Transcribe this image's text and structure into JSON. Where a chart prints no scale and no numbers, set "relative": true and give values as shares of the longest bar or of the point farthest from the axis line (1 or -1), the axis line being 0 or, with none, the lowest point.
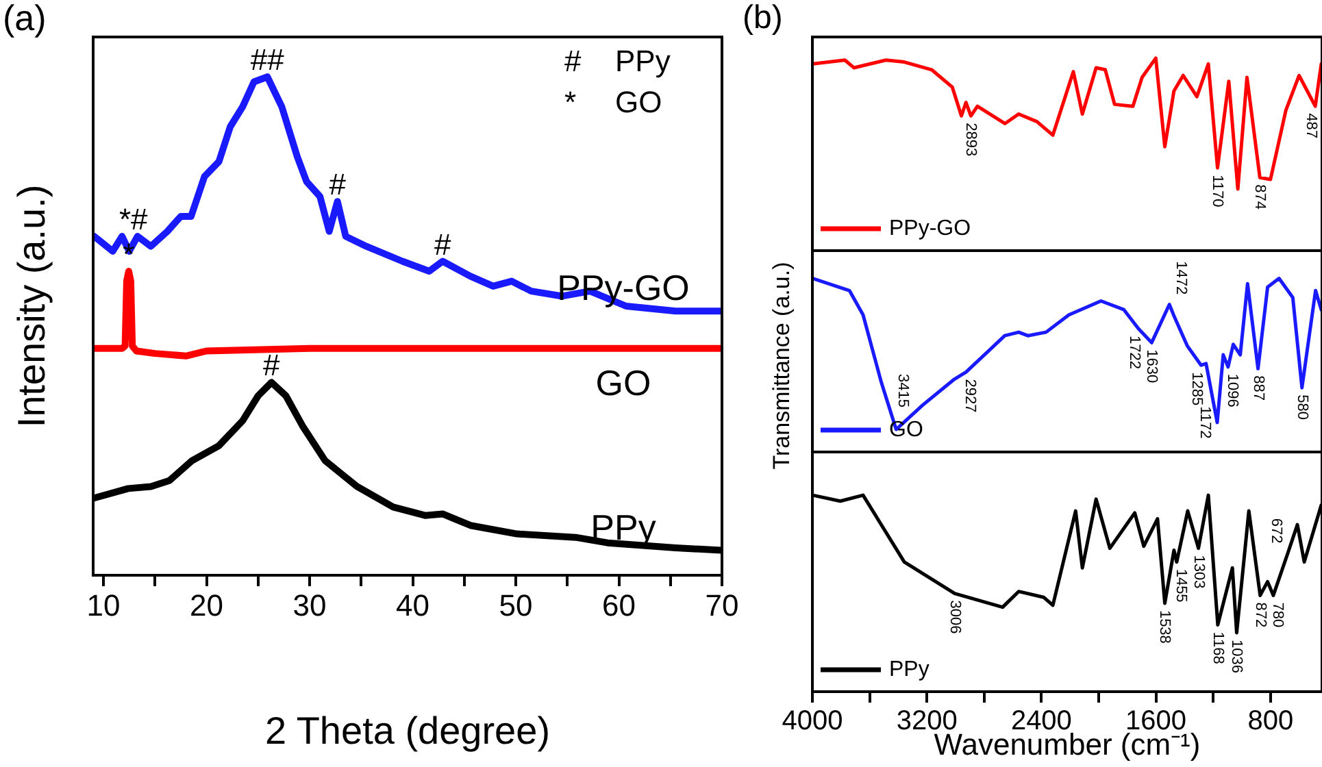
{
  "chart_data": [
    {
      "type": "line",
      "title": "(a)",
      "xlabel": "2 Theta (degree)",
      "ylabel": "Intensity (a.u.)",
      "relative": true,
      "xlim": [
        9,
        70
      ],
      "xticks": [
        10,
        {
          "value": 15,
          "label": null
        },
        20,
        {
          "value": 25,
          "label": null
        },
        30,
        {
          "value": 35,
          "label": null
        },
        40,
        {
          "value": 45,
          "label": null
        },
        50,
        {
          "value": 55,
          "label": null
        },
        60,
        {
          "value": 65,
          "label": null
        },
        70
      ],
      "series": [
        {
          "name": "PPy-GO",
          "color": "#1a1aff",
          "x": [
            9.1,
            10.9,
            11.8,
            12.5,
            13.3,
            14.6,
            16.2,
            17.5,
            18.5,
            19.8,
            21.2,
            22.3,
            23.5,
            24.6,
            25.9,
            27.3,
            28.8,
            29.7,
            31.0,
            31.9,
            32.7,
            33.5,
            35.5,
            39.0,
            41.6,
            42.9,
            45.6,
            47.8,
            49.6,
            51.5,
            54.5,
            57.2,
            60.7,
            65.5,
            69.9
          ],
          "values": [
            0.68,
            0.65,
            0.68,
            0.65,
            0.68,
            0.66,
            0.69,
            0.72,
            0.72,
            0.8,
            0.83,
            0.9,
            0.94,
            0.99,
            1.0,
            0.94,
            0.84,
            0.79,
            0.76,
            0.69,
            0.75,
            0.68,
            0.66,
            0.63,
            0.61,
            0.63,
            0.6,
            0.58,
            0.59,
            0.57,
            0.56,
            0.57,
            0.54,
            0.53,
            0.53
          ]
        },
        {
          "name": "GO",
          "color": "#ff0000",
          "x": [
            9.1,
            11.8,
            12.1,
            12.25,
            12.45,
            12.65,
            12.8,
            13.2,
            15,
            18,
            20,
            30,
            70
          ],
          "values": [
            0.455,
            0.455,
            0.46,
            0.59,
            0.61,
            0.59,
            0.46,
            0.45,
            0.445,
            0.44,
            0.45,
            0.455,
            0.455
          ]
        },
        {
          "name": "PPy",
          "color": "#000000",
          "x": [
            9.1,
            12.4,
            14.6,
            16.4,
            18.6,
            21.2,
            23.5,
            25,
            26.3,
            27.7,
            29.3,
            31.5,
            34.6,
            38.1,
            41.2,
            42.9,
            45.6,
            50.1,
            55.8,
            58.9,
            65.5,
            69.9
          ],
          "values": [
            0.155,
            0.174,
            0.178,
            0.19,
            0.23,
            0.26,
            0.31,
            0.36,
            0.387,
            0.36,
            0.3,
            0.23,
            0.178,
            0.137,
            0.12,
            0.123,
            0.1,
            0.083,
            0.076,
            0.065,
            0.055,
            0.05
          ]
        }
      ],
      "annotations": [
        {
          "text": "##",
          "x": 25.9,
          "y": 1.0
        },
        {
          "text": "*#",
          "x": 12.9,
          "y": 0.68
        },
        {
          "text": "*",
          "x": 12.45,
          "y": 0.61
        },
        {
          "text": "#",
          "x": 32.7,
          "y": 0.75
        },
        {
          "text": "#",
          "x": 42.9,
          "y": 0.63
        },
        {
          "text": "#",
          "x": 26.3,
          "y": 0.387
        },
        "# PPy",
        "* GO"
      ]
    },
    {
      "type": "line",
      "title": "(b)",
      "relative": true,
      "xlim": [
        4000,
        440
      ],
      "tick_labels": false,
      "legend": "bottom left",
      "series": [
        {
          "name": "PPy-GO",
          "color": "#ff0000",
          "x": [
            3997,
            3773,
            3710,
            3486,
            3358,
            3167,
            3023,
            2959,
            2927,
            2893,
            2847,
            2655,
            2559,
            2431,
            2320,
            2177,
            2114,
            2018,
            1954,
            1889,
            1761,
            1697,
            1601,
            1538,
            1474,
            1410,
            1314,
            1234,
            1170,
            1091,
            1028,
            964,
            874,
            800,
            692,
            600,
            487,
            445
          ],
          "values": [
            0.97,
            0.99,
            0.95,
            0.99,
            0.98,
            0.94,
            0.85,
            0.7,
            0.77,
            0.7,
            0.75,
            0.66,
            0.71,
            0.67,
            0.6,
            0.93,
            0.71,
            0.95,
            0.94,
            0.76,
            0.75,
            0.9,
            1.0,
            0.54,
            0.83,
            0.91,
            0.8,
            0.97,
            0.43,
            0.88,
            0.32,
            0.9,
            0.38,
            0.37,
            0.73,
            0.91,
            0.75,
            0.97
          ]
        }
      ],
      "annotations": [
        {
          "text": "2893",
          "x": 2893,
          "y": 0.7
        },
        {
          "text": "1170",
          "x": 1170,
          "y": 0.43
        },
        {
          "text": "874",
          "x": 874,
          "y": 0.38
        },
        {
          "text": "487",
          "x": 487,
          "y": 0.75
        }
      ]
    },
    {
      "type": "line",
      "ylabel": "Transmittance (a.u.)",
      "relative": true,
      "xlim": [
        4000,
        440
      ],
      "tick_labels": false,
      "legend": "bottom left",
      "series": [
        {
          "name": "GO",
          "color": "#1a1aff",
          "x": [
            3997,
            3741,
            3646,
            3518,
            3415,
            3230,
            3007,
            2927,
            2656,
            2559,
            2495,
            2368,
            2208,
            1984,
            1824,
            1722,
            1630,
            1506,
            1472,
            1380,
            1285,
            1250,
            1172,
            1130,
            1096,
            1060,
            1011,
            960,
            887,
            820,
            740,
            644,
            580,
            485,
            445
          ],
          "values": [
            1.0,
            0.93,
            0.79,
            0.4,
            0.13,
            0.27,
            0.42,
            0.46,
            0.67,
            0.69,
            0.67,
            0.69,
            0.79,
            0.87,
            0.82,
            0.71,
            0.63,
            0.85,
            0.78,
            0.61,
            0.5,
            0.51,
            0.17,
            0.56,
            0.49,
            0.62,
            0.56,
            0.97,
            0.48,
            0.95,
            1.0,
            0.89,
            0.37,
            0.93,
            0.82
          ]
        }
      ],
      "annotations": [
        {
          "text": "3415",
          "x": 3415,
          "y": 0.13
        },
        {
          "text": "2927",
          "x": 2927,
          "y": 0.46
        },
        {
          "text": "1722",
          "x": 1722,
          "y": 0.71
        },
        {
          "text": "1630",
          "x": 1630,
          "y": 0.63
        },
        {
          "text": "1472",
          "x": 1472,
          "y": 0.78
        },
        {
          "text": "1285",
          "x": 1285,
          "y": 0.5
        },
        {
          "text": "1172",
          "x": 1172,
          "y": 0.17
        },
        {
          "text": "1096",
          "x": 1096,
          "y": 0.49
        },
        {
          "text": "887",
          "x": 887,
          "y": 0.48
        },
        {
          "text": "580",
          "x": 580,
          "y": 0.37
        }
      ]
    },
    {
      "type": "line",
      "xlabel": "Wavenumber (cm⁻¹)",
      "relative": true,
      "xlim": [
        4000,
        440
      ],
      "legend": "bottom left",
      "xticks": [
        4000,
        {
          "value": 3600,
          "label": null
        },
        3200,
        {
          "value": 2800,
          "label": null
        },
        2400,
        {
          "value": 2000,
          "label": null
        },
        1600,
        {
          "value": 1200,
          "label": null
        },
        800
      ],
      "series": [
        {
          "name": "PPy",
          "color": "#000000",
          "x": [
            3997,
            3805,
            3646,
            3358,
            3006,
            2671,
            2559,
            2383,
            2320,
            2161,
            2114,
            2018,
            1922,
            1748,
            1685,
            1589,
            1538,
            1474,
            1455,
            1378,
            1303,
            1234,
            1168,
            1066,
            1036,
            951,
            872,
            820,
            780,
            672,
            612,
            564,
            445
          ],
          "values": [
            1,
            0.97,
            1,
            0.66,
            0.5,
            0.43,
            0.51,
            0.48,
            0.44,
            0.92,
            0.63,
            0.98,
            0.73,
            0.91,
            0.74,
            0.88,
            0.45,
            0.72,
            0.66,
            0.92,
            0.73,
            1,
            0.34,
            0.63,
            0.3,
            0.92,
            0.49,
            0.56,
            0.49,
            0.72,
            0.85,
            0.66,
            0.95
          ]
        }
      ],
      "annotations": [
        {
          "text": "3006",
          "x": 3006,
          "y": 0.5
        },
        {
          "text": "1538",
          "x": 1538,
          "y": 0.45
        },
        {
          "text": "1455",
          "x": 1455,
          "y": 0.66
        },
        {
          "text": "1303",
          "x": 1303,
          "y": 0.73
        },
        {
          "text": "1168",
          "x": 1168,
          "y": 0.34
        },
        {
          "text": "1036",
          "x": 1036,
          "y": 0.3
        },
        {
          "text": "872",
          "x": 872,
          "y": 0.49
        },
        {
          "text": "780",
          "x": 780,
          "y": 0.49
        },
        {
          "text": "672",
          "x": 672,
          "y": 0.72
        }
      ]
    }
  ]
}
